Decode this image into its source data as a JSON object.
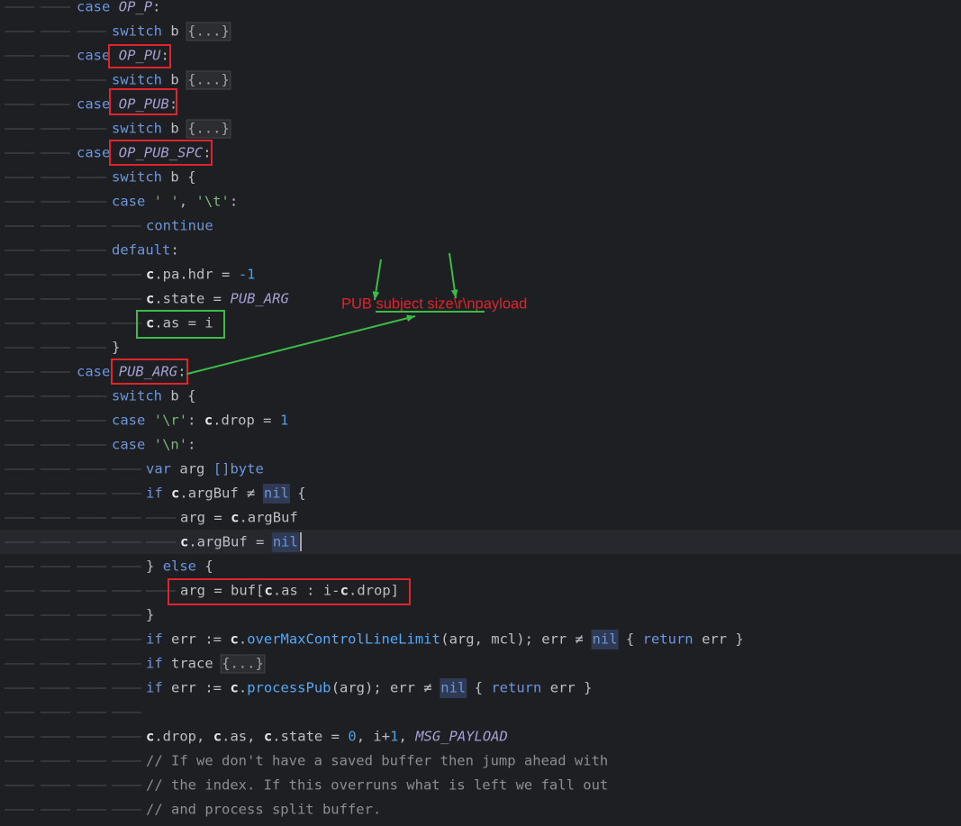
{
  "code": {
    "lines": [
      [
        [
          "case",
          "k"
        ],
        [
          " ",
          "t"
        ],
        [
          "OP_P",
          "i"
        ],
        [
          ":",
          "t"
        ]
      ],
      [
        [
          "switch",
          "k"
        ],
        [
          " b ",
          "t"
        ],
        [
          "{...}",
          "fold"
        ]
      ],
      [
        [
          "case",
          "k"
        ],
        [
          " ",
          "t"
        ],
        [
          "OP_PU",
          "i"
        ],
        [
          ":",
          "t"
        ]
      ],
      [
        [
          "switch",
          "k"
        ],
        [
          " b ",
          "t"
        ],
        [
          "{...}",
          "fold"
        ]
      ],
      [
        [
          "case",
          "k"
        ],
        [
          " ",
          "t"
        ],
        [
          "OP_PUB",
          "i"
        ],
        [
          ":",
          "t"
        ]
      ],
      [
        [
          "switch",
          "k"
        ],
        [
          " b ",
          "t"
        ],
        [
          "{...}",
          "fold"
        ]
      ],
      [
        [
          "case",
          "k"
        ],
        [
          " ",
          "t"
        ],
        [
          "OP_PUB_SPC",
          "i"
        ],
        [
          ":",
          "t"
        ]
      ],
      [
        [
          "switch",
          "k"
        ],
        [
          " b {",
          "t"
        ]
      ],
      [
        [
          "case",
          "k"
        ],
        [
          " ",
          "t"
        ],
        [
          "' '",
          "s"
        ],
        [
          ", ",
          "t"
        ],
        [
          "'\\t'",
          "s"
        ],
        [
          ":",
          "t"
        ]
      ],
      [
        [
          "continue",
          "k"
        ]
      ],
      [
        [
          "default",
          "k"
        ],
        [
          ":",
          "t"
        ]
      ],
      [
        [
          "c",
          "c"
        ],
        [
          ".pa.hdr = ",
          "t"
        ],
        [
          "-1",
          "n"
        ]
      ],
      [
        [
          "c",
          "c"
        ],
        [
          ".state = ",
          "t"
        ],
        [
          "PUB_ARG",
          "i"
        ]
      ],
      [
        [
          "c",
          "c"
        ],
        [
          ".as = i",
          "t"
        ]
      ],
      [
        [
          "}",
          "t"
        ]
      ],
      [
        [
          "case",
          "k"
        ],
        [
          " ",
          "t"
        ],
        [
          "PUB_ARG",
          "i"
        ],
        [
          ":",
          "t"
        ]
      ],
      [
        [
          "switch",
          "k"
        ],
        [
          " b {",
          "t"
        ]
      ],
      [
        [
          "case",
          "k"
        ],
        [
          " ",
          "t"
        ],
        [
          "'\\r'",
          "s"
        ],
        [
          ": ",
          "t"
        ],
        [
          "c",
          "c"
        ],
        [
          ".drop = ",
          "t"
        ],
        [
          "1",
          "n"
        ]
      ],
      [
        [
          "case",
          "k"
        ],
        [
          " ",
          "t"
        ],
        [
          "'\\n'",
          "s"
        ],
        [
          ":",
          "t"
        ]
      ],
      [
        [
          "var",
          "k"
        ],
        [
          " arg ",
          "t"
        ],
        [
          "[]byte",
          "k"
        ]
      ],
      [
        [
          "if",
          "k"
        ],
        [
          " ",
          "t"
        ],
        [
          "c",
          "c"
        ],
        [
          ".argBuf ≠ ",
          "t"
        ],
        [
          "nil",
          "nil"
        ],
        [
          " {",
          "t"
        ]
      ],
      [
        [
          "arg = ",
          "t"
        ],
        [
          "c",
          "c"
        ],
        [
          ".argBuf",
          "t"
        ]
      ],
      [
        [
          "c",
          "c"
        ],
        [
          ".argBuf = ",
          "t"
        ],
        [
          "nil",
          "nil"
        ]
      ],
      [
        [
          "} ",
          "t"
        ],
        [
          "else",
          "k"
        ],
        [
          " {",
          "t"
        ]
      ],
      [
        [
          "arg = buf[",
          "t"
        ],
        [
          "c",
          "c"
        ],
        [
          ".as : i-",
          "t"
        ],
        [
          "c",
          "c"
        ],
        [
          ".drop]",
          "t"
        ]
      ],
      [
        [
          "}",
          "t"
        ]
      ],
      [
        [
          "if",
          "k"
        ],
        [
          " err := ",
          "t"
        ],
        [
          "c",
          "c"
        ],
        [
          ".",
          "t"
        ],
        [
          "overMaxControlLineLimit",
          "f"
        ],
        [
          "(arg, mcl); err ≠ ",
          "t"
        ],
        [
          "nil",
          "nil"
        ],
        [
          " { ",
          "t"
        ],
        [
          "return",
          "k"
        ],
        [
          " err }",
          "t"
        ]
      ],
      [
        [
          "if",
          "k"
        ],
        [
          " trace ",
          "t"
        ],
        [
          "{...}",
          "fold"
        ]
      ],
      [
        [
          "if",
          "k"
        ],
        [
          " err := ",
          "t"
        ],
        [
          "c",
          "c"
        ],
        [
          ".",
          "t"
        ],
        [
          "processPub",
          "f"
        ],
        [
          "(arg); err ≠ ",
          "t"
        ],
        [
          "nil",
          "nil"
        ],
        [
          " { ",
          "t"
        ],
        [
          "return",
          "k"
        ],
        [
          " err }",
          "t"
        ]
      ],
      [],
      [
        [
          "c",
          "c"
        ],
        [
          ".drop, ",
          "t"
        ],
        [
          "c",
          "c"
        ],
        [
          ".as, ",
          "t"
        ],
        [
          "c",
          "c"
        ],
        [
          ".state = ",
          "t"
        ],
        [
          "0",
          "n"
        ],
        [
          ", i+",
          "t"
        ],
        [
          "1",
          "n"
        ],
        [
          ", ",
          "t"
        ],
        [
          "MSG_PAYLOAD",
          "i"
        ]
      ],
      [
        [
          "// If we don't have a saved buffer then jump ahead with",
          "m"
        ]
      ],
      [
        [
          "// the index. If this overruns what is left we fall out",
          "m"
        ]
      ],
      [
        [
          "// and process split buffer.",
          "m"
        ]
      ]
    ]
  },
  "annotation": {
    "label": "PUB subject size\\r\\npayload"
  }
}
